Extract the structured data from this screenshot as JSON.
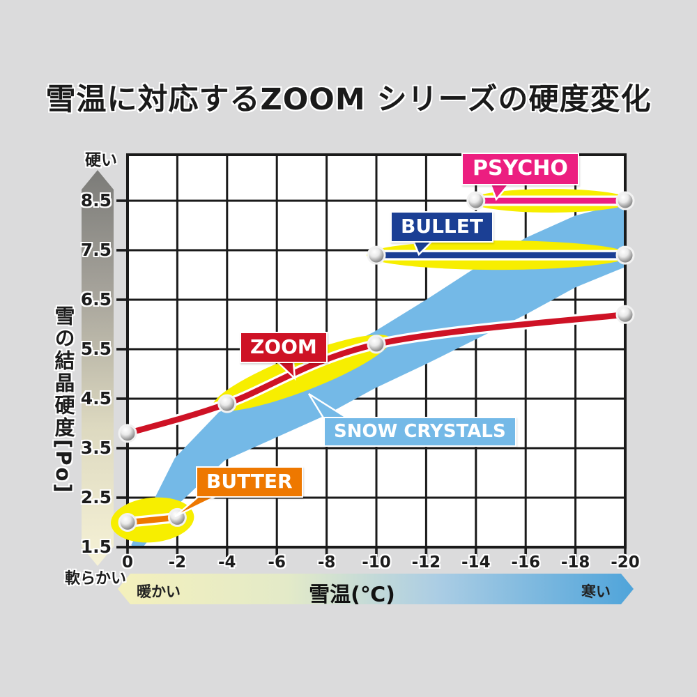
{
  "title": "雪温に対応するZOOM シリーズの硬度変化",
  "colors": {
    "background": "#dbdbdc",
    "plot_bg": "#ffffff",
    "grid": "#1a1a1a",
    "highlight_yellow": "#f7ee00",
    "psycho_pink": "#ec1e80",
    "bullet_blue": "#1b3f94",
    "zoom_red": "#ce1225",
    "butter_orange": "#ee7800",
    "snow_light_blue": "#74b9e7"
  },
  "y_axis": {
    "hard_label": "硬い",
    "soft_label": "軟らかい",
    "title": "雪の結晶硬度",
    "unit": "[Po]",
    "ticks": [
      "8.5",
      "7.5",
      "6.5",
      "5.5",
      "4.5",
      "3.5",
      "2.5",
      "1.5"
    ]
  },
  "x_axis": {
    "ticks": [
      "0",
      "-2",
      "-4",
      "-6",
      "-8",
      "-10",
      "-12",
      "-14",
      "-16",
      "-18",
      "-20"
    ],
    "warm_label": "暖かい",
    "bar_label": "雪温(℃)",
    "cold_label": "寒い"
  },
  "chart_data": {
    "type": "line",
    "title": "雪温に対応するZOOM シリーズの硬度変化",
    "xlabel": "雪温(℃)",
    "ylabel": "雪の結晶硬度 [Po]",
    "xlim": [
      0,
      -20
    ],
    "ylim": [
      1.5,
      9.5
    ],
    "grid": true,
    "x_tick_values": [
      0,
      -2,
      -4,
      -6,
      -8,
      -10,
      -12,
      -14,
      -16,
      -18,
      -20
    ],
    "y_tick_values": [
      8.5,
      7.5,
      6.5,
      5.5,
      4.5,
      3.5,
      2.5,
      1.5
    ],
    "series": [
      {
        "name": "PSYCHO",
        "kind": "line",
        "color": "#ec1e80",
        "points": [
          [
            -14,
            8.5
          ],
          [
            -20,
            8.5
          ]
        ],
        "highlight": {
          "seg": [
            [
              -14.2,
              8.5
            ],
            [
              -19.8,
              8.5
            ]
          ],
          "ry": 17,
          "pad": 16
        }
      },
      {
        "name": "BULLET",
        "kind": "line",
        "color": "#1b3f94",
        "points": [
          [
            -10,
            7.4
          ],
          [
            -20,
            7.4
          ]
        ],
        "highlight": {
          "seg": [
            [
              -10,
              7.4
            ],
            [
              -19.8,
              7.4
            ]
          ],
          "ry": 21,
          "pad": 14
        }
      },
      {
        "name": "ZOOM",
        "kind": "line",
        "color": "#ce1225",
        "points": [
          [
            0,
            3.8
          ],
          [
            -4,
            4.4
          ],
          [
            -10,
            5.6
          ],
          [
            -20,
            6.2
          ]
        ],
        "highlight": {
          "seg": [
            [
              -3.9,
              4.42
            ],
            [
              -10.1,
              5.62
            ]
          ],
          "ry": 26,
          "pad": 18
        }
      },
      {
        "name": "BUTTER",
        "kind": "line",
        "color": "#ee7800",
        "points": [
          [
            0,
            2.0
          ],
          [
            -2,
            2.1
          ]
        ],
        "highlight": {
          "seg": [
            [
              0,
              2.0
            ],
            [
              -2,
              2.1
            ]
          ],
          "ry": 32,
          "pad": 24
        }
      },
      {
        "name": "SNOW CRYSTALS",
        "kind": "band",
        "color": "#74b9e7",
        "upper": [
          [
            -0.15,
            1.55
          ],
          [
            -1.9,
            3.3
          ],
          [
            -3.9,
            4.35
          ],
          [
            -5.9,
            4.9
          ],
          [
            -7.9,
            5.35
          ],
          [
            -9.9,
            5.85
          ],
          [
            -12,
            6.5
          ],
          [
            -14,
            7.15
          ],
          [
            -16,
            7.75
          ],
          [
            -18,
            8.2
          ],
          [
            -19.95,
            8.45
          ]
        ],
        "lower": [
          [
            -0.3,
            1.3
          ],
          [
            -1.9,
            2.3
          ],
          [
            -3.9,
            3.25
          ],
          [
            -5.9,
            3.7
          ],
          [
            -7.9,
            4.15
          ],
          [
            -9.9,
            4.7
          ],
          [
            -12,
            5.2
          ],
          [
            -14,
            5.7
          ],
          [
            -16,
            6.2
          ],
          [
            -18,
            6.75
          ],
          [
            -19.95,
            7.15
          ]
        ]
      }
    ]
  }
}
